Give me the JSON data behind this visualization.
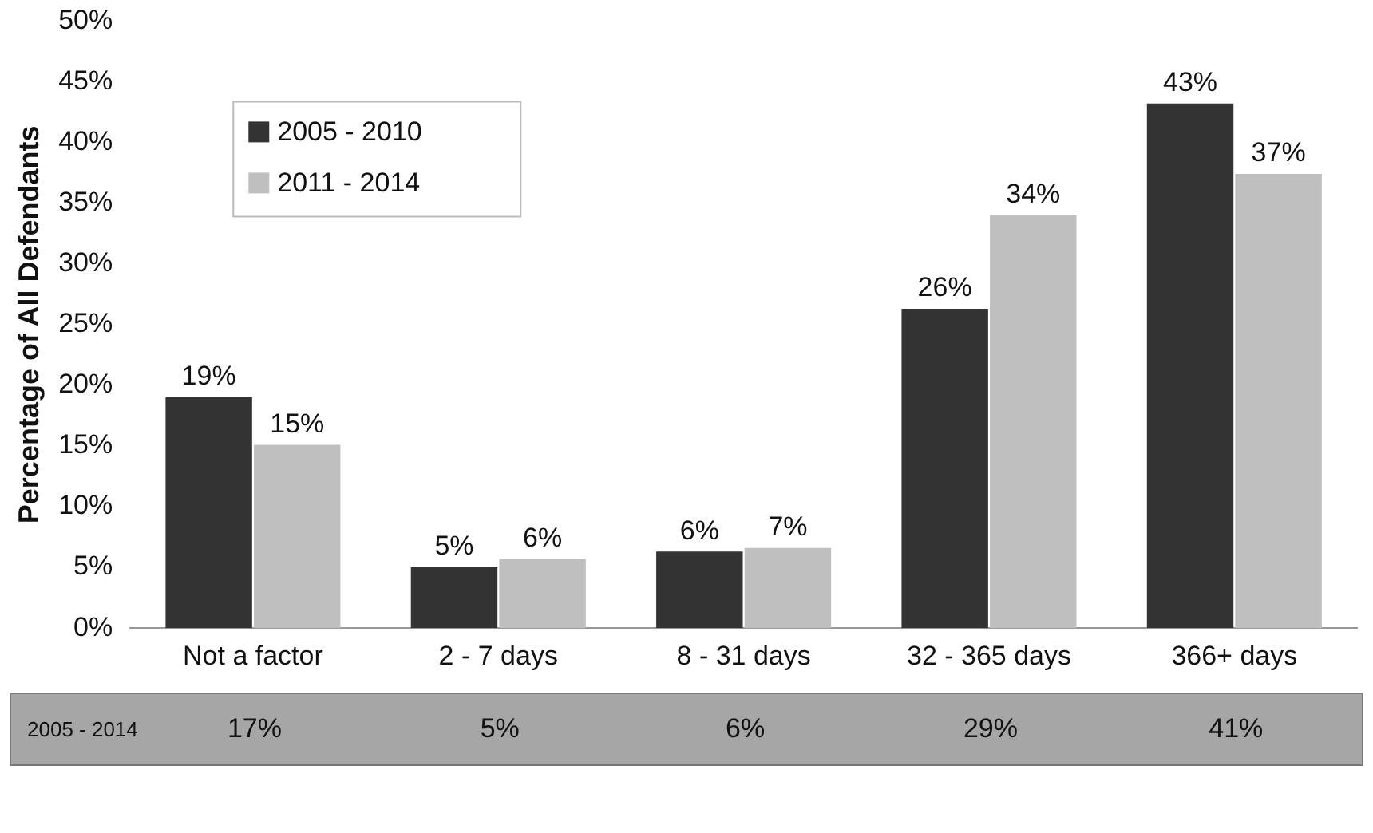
{
  "chart_data": {
    "type": "bar",
    "ylabel": "Percentage of All Defendants",
    "categories": [
      "Not a factor",
      "2 - 7 days",
      "8 - 31 days",
      "32 - 365 days",
      "366+ days"
    ],
    "series": [
      {
        "name": "2005 - 2010",
        "color": "#333333",
        "values": [
          19,
          5,
          6.3,
          26.3,
          43.2
        ],
        "value_labels": [
          "19%",
          "5%",
          "6%",
          "26%",
          "43%"
        ]
      },
      {
        "name": "2011 - 2014",
        "color": "#bfbfbf",
        "values": [
          15.1,
          5.7,
          6.6,
          34,
          37.4
        ],
        "value_labels": [
          "15%",
          "6%",
          "7%",
          "34%",
          "37%"
        ]
      }
    ],
    "ylim": [
      0,
      50
    ],
    "yticks": [
      {
        "value": 0,
        "label": "0%"
      },
      {
        "value": 5,
        "label": "5%"
      },
      {
        "value": 10,
        "label": "10%"
      },
      {
        "value": 15,
        "label": "15%"
      },
      {
        "value": 20,
        "label": "20%"
      },
      {
        "value": 25,
        "label": "25%"
      },
      {
        "value": 30,
        "label": "30%"
      },
      {
        "value": 35,
        "label": "35%"
      },
      {
        "value": 40,
        "label": "40%"
      },
      {
        "value": 45,
        "label": "45%"
      },
      {
        "value": 50,
        "label": "50%"
      }
    ],
    "grid": false,
    "legend": "top left",
    "annotations": [
      "2005 - 2014",
      "17%",
      "5%",
      "6%",
      "29%",
      "41%"
    ]
  }
}
